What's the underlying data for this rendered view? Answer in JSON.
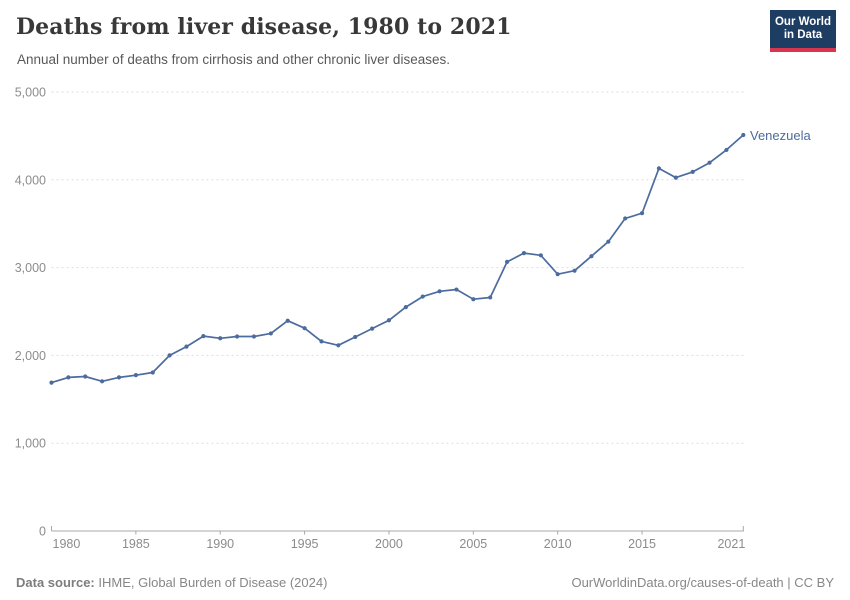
{
  "header": {
    "title": "Deaths from liver disease, 1980 to 2021",
    "subtitle": "Annual number of deaths from cirrhosis and other chronic liver diseases.",
    "logo": {
      "line1": "Our World",
      "line2": "in Data"
    }
  },
  "chart_data": {
    "type": "line",
    "title": "Deaths from liver disease, 1980 to 2021",
    "xlabel": "",
    "ylabel": "",
    "xlim": [
      1980,
      2021
    ],
    "ylim": [
      0,
      5000
    ],
    "grid": "horizontal-dashed",
    "legend_position": "end-of-line-label",
    "x_ticks": [
      1980,
      1985,
      1990,
      1995,
      2000,
      2005,
      2010,
      2015,
      2021
    ],
    "x_tick_labels": [
      "1980",
      "1985",
      "1990",
      "1995",
      "2000",
      "2005",
      "2010",
      "2015",
      "2021"
    ],
    "y_ticks": [
      0,
      1000,
      2000,
      3000,
      4000,
      5000
    ],
    "y_tick_labels": [
      "0",
      "1,000",
      "2,000",
      "3,000",
      "4,000",
      "5,000"
    ],
    "series": [
      {
        "name": "Venezuela",
        "color": "#4C6B9E",
        "x": [
          1980,
          1981,
          1982,
          1983,
          1984,
          1985,
          1986,
          1987,
          1988,
          1989,
          1990,
          1991,
          1992,
          1993,
          1994,
          1995,
          1996,
          1997,
          1998,
          1999,
          2000,
          2001,
          2002,
          2003,
          2004,
          2005,
          2006,
          2007,
          2008,
          2009,
          2010,
          2011,
          2012,
          2013,
          2014,
          2015,
          2016,
          2017,
          2018,
          2019,
          2020,
          2021
        ],
        "values": [
          1690,
          1750,
          1760,
          1705,
          1750,
          1775,
          1805,
          2000,
          2100,
          2220,
          2195,
          2215,
          2215,
          2250,
          2395,
          2310,
          2160,
          2115,
          2210,
          2305,
          2400,
          2550,
          2670,
          2730,
          2750,
          2640,
          2660,
          3065,
          3165,
          3140,
          2925,
          2965,
          3130,
          3295,
          3560,
          3620,
          4130,
          4025,
          4090,
          4195,
          4340,
          4510
        ]
      }
    ]
  },
  "colors": {
    "series": "#4C6B9E",
    "grid": "#dddddd",
    "axis": "#a8a8a8",
    "tick_text": "#8c8c8c",
    "logo_bg": "#1d3d63",
    "logo_stripe": "#d8354f"
  },
  "footer": {
    "source_label": "Data source:",
    "source_value": " IHME, Global Burden of Disease (2024)",
    "credit": "OurWorldinData.org/causes-of-death | CC BY"
  }
}
